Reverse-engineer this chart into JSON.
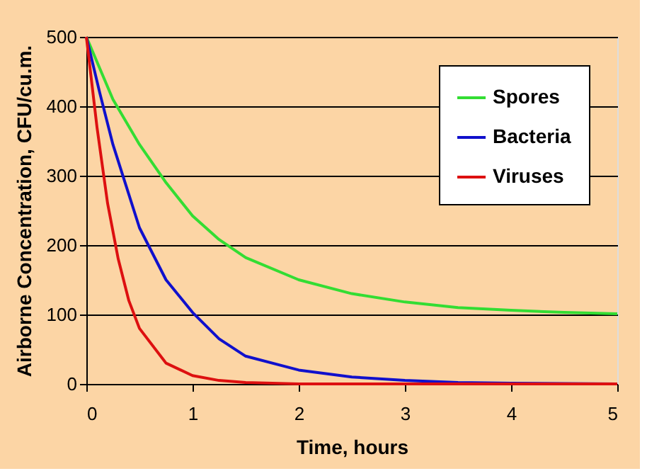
{
  "chart_data": {
    "type": "line",
    "xlabel": "Time, hours",
    "ylabel": "Airborne Concentration, CFU/cu.m.",
    "xlim": [
      0,
      5
    ],
    "xticks": [
      0,
      1,
      2,
      3,
      4,
      5
    ],
    "ylim": [
      0,
      500
    ],
    "yticks": [
      0,
      100,
      200,
      300,
      400,
      500
    ],
    "grid": "y",
    "legend": "top right",
    "marker": "none",
    "line_style": "solid",
    "series": [
      {
        "name": "Spores",
        "color": "#33dd33",
        "x": [
          0,
          0.25,
          0.5,
          0.75,
          1,
          1.25,
          1.5,
          2,
          2.5,
          3,
          3.5,
          4,
          4.5,
          5
        ],
        "values": [
          500,
          410,
          345,
          290,
          242,
          208,
          182,
          150,
          130,
          118,
          110,
          106,
          103,
          101
        ]
      },
      {
        "name": "Bacteria",
        "color": "#1010cc",
        "x": [
          0,
          0.125,
          0.25,
          0.5,
          0.75,
          1,
          1.25,
          1.5,
          2,
          2.5,
          3,
          3.5,
          4,
          5
        ],
        "values": [
          500,
          420,
          345,
          225,
          150,
          103,
          65,
          40,
          20,
          10,
          5,
          2,
          1,
          0
        ]
      },
      {
        "name": "Viruses",
        "color": "#dd1010",
        "x": [
          0,
          0.1,
          0.2,
          0.3,
          0.4,
          0.5,
          0.75,
          1,
          1.25,
          1.5,
          2,
          5
        ],
        "values": [
          500,
          370,
          260,
          180,
          120,
          80,
          30,
          12,
          5,
          2,
          0,
          0
        ]
      }
    ]
  }
}
